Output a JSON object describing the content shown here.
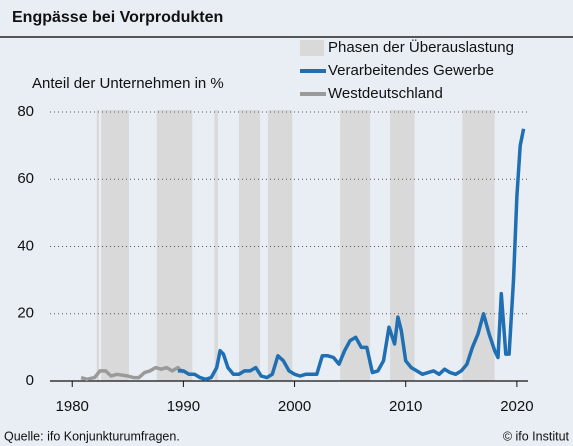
{
  "chart_data": {
    "type": "line",
    "title": "Engpässe bei Vorprodukten",
    "y_label": "Anteil der Unternehmen in %",
    "source": "Quelle: ifo Konjunkturumfragen.",
    "copyright": "© ifo Institut",
    "xlim": [
      1978,
      2021
    ],
    "xticks": [
      1980,
      1990,
      2000,
      2010,
      2020
    ],
    "ylim": [
      0,
      80
    ],
    "yticks": [
      0,
      20,
      40,
      60,
      80
    ],
    "grid": true,
    "legend": "top-right",
    "phases": {
      "name": "Phasen der Überauslastung",
      "color": "#d9d9d9",
      "ranges": [
        [
          1982.2,
          1982.4
        ],
        [
          1982.6,
          1985.1
        ],
        [
          1987.6,
          1990.8
        ],
        [
          1992.8,
          1993.1
        ],
        [
          1995.0,
          1996.9
        ],
        [
          1997.6,
          1999.8
        ],
        [
          2004.1,
          2006.8
        ],
        [
          2008.6,
          2010.8
        ],
        [
          2015.1,
          2018.0
        ]
      ]
    },
    "series": [
      {
        "name": "Verarbeitendes Gewerbe",
        "color": "#1f6fb2",
        "x": [
          1989.5,
          1990,
          1990.5,
          1991,
          1991.5,
          1992,
          1992.5,
          1993,
          1993.3,
          1993.6,
          1994,
          1994.5,
          1995,
          1995.5,
          1996,
          1996.5,
          1997,
          1997.5,
          1998,
          1998.5,
          1999,
          1999.5,
          2000,
          2000.5,
          2001,
          2001.5,
          2002,
          2002.5,
          2003,
          2003.5,
          2004,
          2004.5,
          2005,
          2005.5,
          2006,
          2006.5,
          2007,
          2007.5,
          2008,
          2008.5,
          2009,
          2009.3,
          2009.6,
          2010,
          2010.5,
          2011,
          2011.5,
          2012,
          2012.5,
          2013,
          2013.5,
          2014,
          2014.5,
          2015,
          2015.5,
          2016,
          2016.5,
          2017,
          2017.5,
          2018,
          2018.3,
          2018.6,
          2019,
          2019.3,
          2019.7,
          2020,
          2020.3,
          2020.6
        ],
        "values": [
          3,
          3,
          2,
          2,
          1,
          0.5,
          1,
          4,
          9,
          8,
          4,
          2,
          2,
          3,
          3,
          4,
          1.5,
          1,
          2,
          7.5,
          6,
          3,
          2,
          1.5,
          2,
          2,
          2,
          7.5,
          7.5,
          7,
          5,
          9,
          12,
          13,
          10,
          10,
          2.5,
          3,
          6,
          16,
          11,
          19,
          15,
          6,
          4,
          3,
          2,
          2.5,
          3,
          2,
          3.5,
          2.5,
          2,
          3,
          5,
          10,
          14,
          20,
          14,
          9,
          7,
          26,
          8,
          8,
          30,
          55,
          70,
          75
        ]
      },
      {
        "name": "Westdeutschland",
        "color": "#9a9a9a",
        "x": [
          1980.8,
          1981.3,
          1982,
          1982.5,
          1983,
          1983.5,
          1984,
          1985,
          1985.5,
          1986,
          1986.5,
          1987,
          1987.5,
          1988,
          1988.5,
          1989,
          1989.5,
          1990
        ],
        "values": [
          1,
          0.5,
          1,
          3,
          3,
          1.5,
          2,
          1.5,
          1,
          1,
          2.5,
          3,
          4,
          3.5,
          4,
          3,
          4,
          2.5
        ]
      }
    ]
  }
}
